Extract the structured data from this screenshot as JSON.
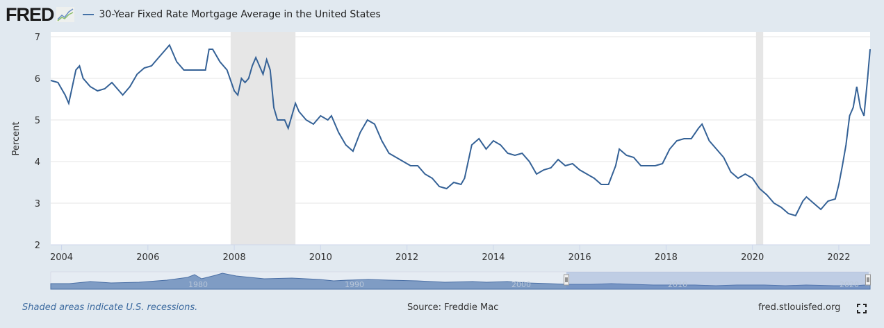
{
  "header": {
    "logo": "FRED",
    "logo_icon": "line-chart-icon",
    "series_title": "30-Year Fixed Rate Mortgage Average in the United States"
  },
  "footer": {
    "recession_note": "Shaded areas indicate U.S. recessions.",
    "source": "Source: Freddie Mac",
    "site": "fred.stlouisfed.org",
    "fullscreen_icon": "fullscreen-icon"
  },
  "colors": {
    "line": "#346196",
    "recession": "#e6e6e6",
    "background": "#e1e9f0",
    "navigator": "#7f9cc4"
  },
  "chart_data": {
    "type": "line",
    "title": "30-Year Fixed Rate Mortgage Average in the United States",
    "ylabel": "Percent",
    "xlabel": "",
    "ylim": [
      2,
      7
    ],
    "xlim": [
      "2003-10",
      "2022-09"
    ],
    "yticks": [
      "2",
      "3",
      "4",
      "5",
      "6",
      "7"
    ],
    "xticks": [
      "2004",
      "2006",
      "2008",
      "2010",
      "2012",
      "2014",
      "2016",
      "2018",
      "2020",
      "2022"
    ],
    "grid": true,
    "recessions": [
      [
        "2007-12",
        "2009-06"
      ],
      [
        "2020-02",
        "2020-04"
      ]
    ],
    "navigator_ticks": [
      "1980",
      "1990",
      "2000",
      "2010",
      "2020"
    ],
    "series": [
      {
        "name": "30-Year Fixed Rate Mortgage Average in the United States",
        "points": [
          [
            "2003-10",
            5.95
          ],
          [
            "2003-12",
            5.9
          ],
          [
            "2004-02",
            5.6
          ],
          [
            "2004-03",
            5.4
          ],
          [
            "2004-05",
            6.2
          ],
          [
            "2004-06",
            6.3
          ],
          [
            "2004-07",
            6.0
          ],
          [
            "2004-09",
            5.8
          ],
          [
            "2004-11",
            5.7
          ],
          [
            "2005-01",
            5.75
          ],
          [
            "2005-03",
            5.9
          ],
          [
            "2005-05",
            5.7
          ],
          [
            "2005-06",
            5.6
          ],
          [
            "2005-08",
            5.8
          ],
          [
            "2005-10",
            6.1
          ],
          [
            "2005-12",
            6.25
          ],
          [
            "2006-02",
            6.3
          ],
          [
            "2006-04",
            6.5
          ],
          [
            "2006-06",
            6.7
          ],
          [
            "2006-07",
            6.8
          ],
          [
            "2006-09",
            6.4
          ],
          [
            "2006-11",
            6.2
          ],
          [
            "2007-01",
            6.2
          ],
          [
            "2007-03",
            6.2
          ],
          [
            "2007-05",
            6.2
          ],
          [
            "2007-06",
            6.7
          ],
          [
            "2007-07",
            6.7
          ],
          [
            "2007-09",
            6.4
          ],
          [
            "2007-11",
            6.2
          ],
          [
            "2008-01",
            5.7
          ],
          [
            "2008-02",
            5.6
          ],
          [
            "2008-03",
            6.0
          ],
          [
            "2008-04",
            5.9
          ],
          [
            "2008-05",
            6.0
          ],
          [
            "2008-06",
            6.3
          ],
          [
            "2008-07",
            6.5
          ],
          [
            "2008-09",
            6.1
          ],
          [
            "2008-10",
            6.45
          ],
          [
            "2008-11",
            6.2
          ],
          [
            "2008-12",
            5.3
          ],
          [
            "2009-01",
            5.0
          ],
          [
            "2009-03",
            5.0
          ],
          [
            "2009-04",
            4.8
          ],
          [
            "2009-06",
            5.4
          ],
          [
            "2009-07",
            5.2
          ],
          [
            "2009-09",
            5.0
          ],
          [
            "2009-11",
            4.9
          ],
          [
            "2010-01",
            5.1
          ],
          [
            "2010-03",
            5.0
          ],
          [
            "2010-04",
            5.1
          ],
          [
            "2010-06",
            4.7
          ],
          [
            "2010-08",
            4.4
          ],
          [
            "2010-10",
            4.25
          ],
          [
            "2010-12",
            4.7
          ],
          [
            "2011-02",
            5.0
          ],
          [
            "2011-04",
            4.9
          ],
          [
            "2011-06",
            4.5
          ],
          [
            "2011-08",
            4.2
          ],
          [
            "2011-10",
            4.1
          ],
          [
            "2011-12",
            4.0
          ],
          [
            "2012-02",
            3.9
          ],
          [
            "2012-04",
            3.9
          ],
          [
            "2012-06",
            3.7
          ],
          [
            "2012-08",
            3.6
          ],
          [
            "2012-10",
            3.4
          ],
          [
            "2012-12",
            3.35
          ],
          [
            "2013-02",
            3.5
          ],
          [
            "2013-04",
            3.45
          ],
          [
            "2013-05",
            3.6
          ],
          [
            "2013-07",
            4.4
          ],
          [
            "2013-09",
            4.55
          ],
          [
            "2013-11",
            4.3
          ],
          [
            "2014-01",
            4.5
          ],
          [
            "2014-03",
            4.4
          ],
          [
            "2014-05",
            4.2
          ],
          [
            "2014-07",
            4.15
          ],
          [
            "2014-09",
            4.2
          ],
          [
            "2014-11",
            4.0
          ],
          [
            "2015-01",
            3.7
          ],
          [
            "2015-03",
            3.8
          ],
          [
            "2015-05",
            3.85
          ],
          [
            "2015-07",
            4.05
          ],
          [
            "2015-09",
            3.9
          ],
          [
            "2015-11",
            3.95
          ],
          [
            "2016-01",
            3.8
          ],
          [
            "2016-03",
            3.7
          ],
          [
            "2016-05",
            3.6
          ],
          [
            "2016-07",
            3.45
          ],
          [
            "2016-09",
            3.45
          ],
          [
            "2016-11",
            3.9
          ],
          [
            "2016-12",
            4.3
          ],
          [
            "2017-02",
            4.15
          ],
          [
            "2017-04",
            4.1
          ],
          [
            "2017-06",
            3.9
          ],
          [
            "2017-08",
            3.9
          ],
          [
            "2017-10",
            3.9
          ],
          [
            "2017-12",
            3.95
          ],
          [
            "2018-02",
            4.3
          ],
          [
            "2018-04",
            4.5
          ],
          [
            "2018-06",
            4.55
          ],
          [
            "2018-08",
            4.55
          ],
          [
            "2018-10",
            4.8
          ],
          [
            "2018-11",
            4.9
          ],
          [
            "2019-01",
            4.5
          ],
          [
            "2019-03",
            4.3
          ],
          [
            "2019-05",
            4.1
          ],
          [
            "2019-07",
            3.75
          ],
          [
            "2019-09",
            3.6
          ],
          [
            "2019-11",
            3.7
          ],
          [
            "2020-01",
            3.6
          ],
          [
            "2020-03",
            3.35
          ],
          [
            "2020-05",
            3.2
          ],
          [
            "2020-07",
            3.0
          ],
          [
            "2020-09",
            2.9
          ],
          [
            "2020-11",
            2.75
          ],
          [
            "2021-01",
            2.7
          ],
          [
            "2021-03",
            3.05
          ],
          [
            "2021-04",
            3.15
          ],
          [
            "2021-06",
            3.0
          ],
          [
            "2021-08",
            2.85
          ],
          [
            "2021-10",
            3.05
          ],
          [
            "2021-12",
            3.1
          ],
          [
            "2022-01",
            3.45
          ],
          [
            "2022-02",
            3.9
          ],
          [
            "2022-03",
            4.4
          ],
          [
            "2022-04",
            5.1
          ],
          [
            "2022-05",
            5.3
          ],
          [
            "2022-06",
            5.8
          ],
          [
            "2022-07",
            5.3
          ],
          [
            "2022-08",
            5.1
          ],
          [
            "2022-09",
            6.0
          ],
          [
            "2022-09-22",
            6.7
          ]
        ]
      }
    ]
  }
}
